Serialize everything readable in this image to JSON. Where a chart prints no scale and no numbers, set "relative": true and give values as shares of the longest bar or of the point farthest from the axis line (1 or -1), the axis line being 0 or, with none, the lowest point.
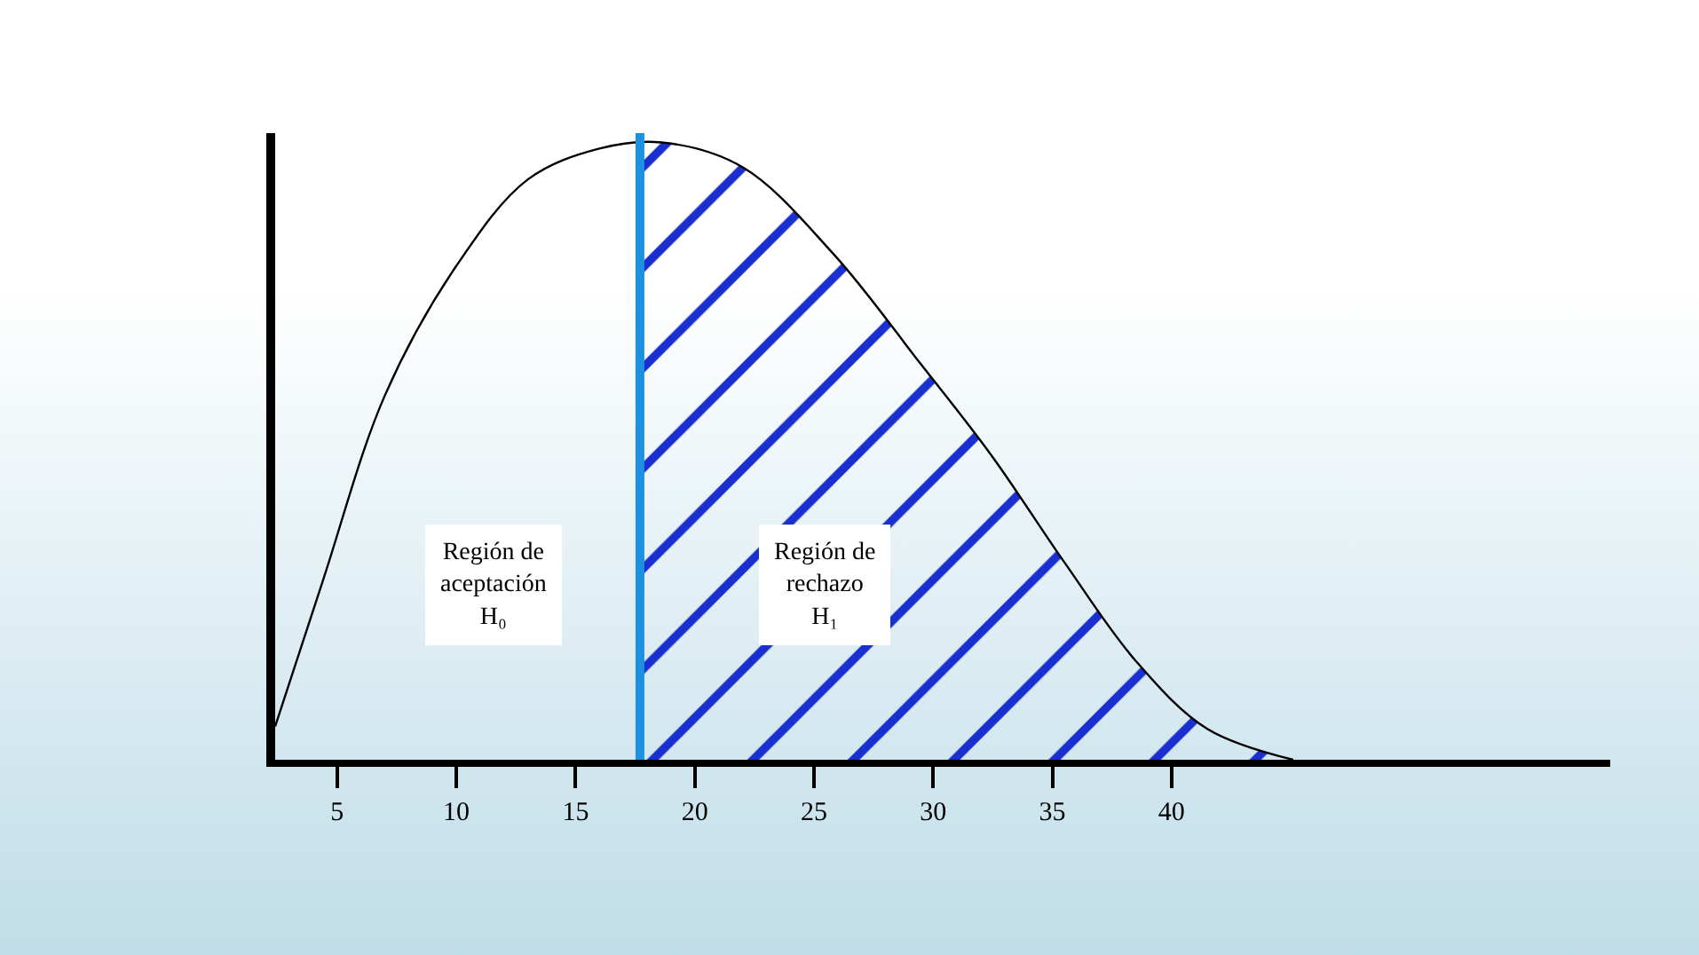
{
  "chart_data": {
    "type": "line",
    "relative": true,
    "x": [
      2.4,
      4.4,
      7.0,
      10.0,
      13.0,
      16.0,
      18.6,
      22.0,
      25.8,
      29.5,
      32.5,
      35.5,
      38.5,
      41.5,
      45.1
    ],
    "series": [
      {
        "color": "#000000",
        "values": [
          0.054,
          0.29,
          0.59,
          0.8,
          0.94,
          0.99,
          1.0,
          0.96,
          0.82,
          0.64,
          0.49,
          0.32,
          0.16,
          0.05,
          0
        ]
      },
      {
        "type": "area",
        "color": "#1a2fd0",
        "x": [
          17.7,
          18.6,
          22.0,
          25.8,
          29.5,
          32.5,
          35.5,
          38.5,
          41.5,
          45.1
        ],
        "values": [
          1.0,
          1.0,
          0.96,
          0.82,
          0.64,
          0.49,
          0.32,
          0.16,
          0.05,
          0
        ]
      }
    ],
    "xlim": [
      2.4,
      58.4
    ],
    "xticks": [
      5,
      10,
      15,
      20,
      25,
      30,
      35,
      40
    ],
    "ref_lines": [
      {
        "axis": "x",
        "value": 17.7,
        "color": "#1e90e0"
      }
    ],
    "annotations": [
      "Región de\naceptación\nH₀",
      "Región de\nrechazo\nH₁"
    ],
    "grid": false,
    "marker": "none",
    "line_style": "solid"
  }
}
